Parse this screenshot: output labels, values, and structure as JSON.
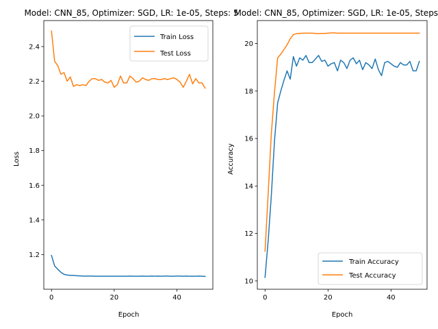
{
  "chart_data": [
    {
      "type": "line",
      "title": "Model: CNN_85, Optimizer: SGD, LR: 1e-05, Steps: 5",
      "xlabel": "Epoch",
      "ylabel": "Loss",
      "xlim": [
        -2.45,
        51.45
      ],
      "ylim": [
        1.0,
        2.55
      ],
      "xticks": [
        0,
        20,
        40
      ],
      "xtick_labels": [
        "0",
        "20",
        "40"
      ],
      "yticks": [
        1.2,
        1.4,
        1.6,
        1.8,
        2.0,
        2.2,
        2.4
      ],
      "ytick_labels": [
        "1.2",
        "1.4",
        "1.6",
        "1.8",
        "2.0",
        "2.2",
        "2.4"
      ],
      "grid": false,
      "legend": "top-right",
      "x": [
        0,
        1,
        2,
        3,
        4,
        5,
        6,
        7,
        8,
        9,
        10,
        11,
        12,
        13,
        14,
        15,
        16,
        17,
        18,
        19,
        20,
        21,
        22,
        23,
        24,
        25,
        26,
        27,
        28,
        29,
        30,
        31,
        32,
        33,
        34,
        35,
        36,
        37,
        38,
        39,
        40,
        41,
        42,
        43,
        44,
        45,
        46,
        47,
        48,
        49
      ],
      "series": [
        {
          "name": "Train Loss",
          "color": "#1f77b4",
          "values": [
            1.195,
            1.135,
            1.115,
            1.098,
            1.086,
            1.082,
            1.08,
            1.08,
            1.078,
            1.077,
            1.076,
            1.076,
            1.076,
            1.076,
            1.075,
            1.075,
            1.075,
            1.075,
            1.075,
            1.075,
            1.075,
            1.075,
            1.075,
            1.075,
            1.075,
            1.076,
            1.075,
            1.075,
            1.075,
            1.076,
            1.075,
            1.075,
            1.076,
            1.075,
            1.076,
            1.075,
            1.076,
            1.076,
            1.075,
            1.075,
            1.076,
            1.076,
            1.075,
            1.076,
            1.075,
            1.075,
            1.075,
            1.076,
            1.075,
            1.074
          ]
        },
        {
          "name": "Test Loss",
          "color": "#ff7f0e",
          "values": [
            2.49,
            2.315,
            2.29,
            2.24,
            2.25,
            2.2,
            2.225,
            2.17,
            2.18,
            2.175,
            2.18,
            2.175,
            2.2,
            2.215,
            2.215,
            2.205,
            2.21,
            2.195,
            2.19,
            2.205,
            2.165,
            2.18,
            2.23,
            2.19,
            2.19,
            2.23,
            2.215,
            2.195,
            2.2,
            2.22,
            2.21,
            2.205,
            2.215,
            2.215,
            2.21,
            2.21,
            2.215,
            2.21,
            2.215,
            2.22,
            2.21,
            2.195,
            2.165,
            2.2,
            2.24,
            2.185,
            2.215,
            2.19,
            2.19,
            2.16
          ]
        }
      ]
    },
    {
      "type": "line",
      "title": "Model: CNN_85, Optimizer: SGD, LR: 1e-05, Steps: 5",
      "xlabel": "Epoch",
      "ylabel": "Accuracy",
      "xlim": [
        -2.45,
        51.45
      ],
      "ylim": [
        9.65,
        20.97
      ],
      "xticks": [
        0,
        20,
        40
      ],
      "xtick_labels": [
        "0",
        "20",
        "40"
      ],
      "yticks": [
        10,
        12,
        14,
        16,
        18,
        20
      ],
      "ytick_labels": [
        "10",
        "12",
        "14",
        "16",
        "18",
        "20"
      ],
      "grid": false,
      "legend": "bottom-right",
      "x": [
        0,
        1,
        2,
        3,
        4,
        5,
        6,
        7,
        8,
        9,
        10,
        11,
        12,
        13,
        14,
        15,
        16,
        17,
        18,
        19,
        20,
        21,
        22,
        23,
        24,
        25,
        26,
        27,
        28,
        29,
        30,
        31,
        32,
        33,
        34,
        35,
        36,
        37,
        38,
        39,
        40,
        41,
        42,
        43,
        44,
        45,
        46,
        47,
        48,
        49
      ],
      "series": [
        {
          "name": "Train Accuracy",
          "color": "#1f77b4",
          "values": [
            10.15,
            11.7,
            13.6,
            15.9,
            17.5,
            18.0,
            18.45,
            18.85,
            18.5,
            19.45,
            19.05,
            19.4,
            19.3,
            19.5,
            19.2,
            19.2,
            19.35,
            19.5,
            19.25,
            19.3,
            19.05,
            19.15,
            19.2,
            18.85,
            19.3,
            19.2,
            18.95,
            19.3,
            19.4,
            19.15,
            19.3,
            18.9,
            19.2,
            19.1,
            18.95,
            19.35,
            18.9,
            18.65,
            19.2,
            19.25,
            19.15,
            19.05,
            19.0,
            19.2,
            19.1,
            19.1,
            19.25,
            18.85,
            18.85,
            19.25
          ]
        },
        {
          "name": "Test Accuracy",
          "color": "#ff7f0e",
          "values": [
            11.25,
            13.7,
            16.2,
            17.95,
            19.4,
            19.55,
            19.75,
            19.95,
            20.2,
            20.38,
            20.42,
            20.43,
            20.44,
            20.44,
            20.44,
            20.44,
            20.43,
            20.42,
            20.43,
            20.43,
            20.44,
            20.45,
            20.45,
            20.44,
            20.44,
            20.44,
            20.44,
            20.44,
            20.44,
            20.44,
            20.44,
            20.44,
            20.44,
            20.44,
            20.44,
            20.44,
            20.44,
            20.44,
            20.44,
            20.44,
            20.44,
            20.44,
            20.44,
            20.44,
            20.44,
            20.44,
            20.44,
            20.44,
            20.44,
            20.44
          ]
        }
      ]
    }
  ]
}
